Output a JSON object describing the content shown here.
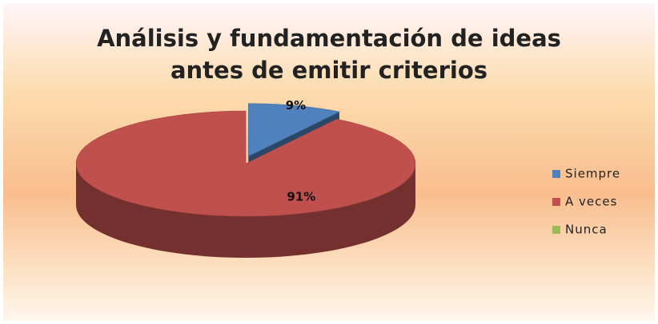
{
  "chart_data": {
    "type": "pie",
    "title": "Análisis y fundamentación  de ideas",
    "subtitle": "antes de emitir criterios",
    "categories": [
      "Siempre",
      "A veces",
      "Nunca"
    ],
    "values": [
      9,
      91,
      0
    ],
    "value_labels": [
      "9%",
      "91%",
      null
    ],
    "colors": [
      "#4f81bd",
      "#c0504d",
      "#9bbb59"
    ],
    "legend": "right"
  }
}
